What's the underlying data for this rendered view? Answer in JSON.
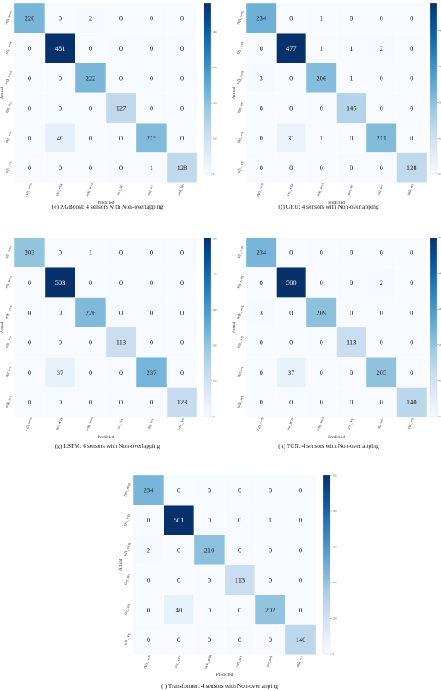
{
  "chart_data": [
    {
      "type": "heatmap",
      "caption": "(e) XGBoost: 4 sensors with Non-overlapping",
      "x_categories": [
        "run_wos",
        "stn_wos",
        "wlk_wos",
        "run_ws",
        "stn_ws",
        "wlk_ws"
      ],
      "y_categories": [
        "run_wos",
        "stn_wos",
        "wlk_wos",
        "run_ws",
        "stn_ws",
        "wlk_ws"
      ],
      "xlabel": "Predicted",
      "ylabel": "Actual",
      "values": [
        [
          226,
          0,
          2,
          0,
          0,
          0
        ],
        [
          0,
          481,
          0,
          0,
          0,
          0
        ],
        [
          0,
          0,
          222,
          0,
          0,
          0
        ],
        [
          0,
          0,
          0,
          127,
          0,
          0
        ],
        [
          0,
          40,
          0,
          0,
          215,
          0
        ],
        [
          0,
          0,
          0,
          0,
          1,
          128
        ]
      ],
      "vmin": 0,
      "vmax": 481,
      "colorbar_ticks": [
        0,
        100,
        200,
        300,
        400
      ]
    },
    {
      "type": "heatmap",
      "caption": "(f) GRU: 4 sensors with Non-overlapping",
      "x_categories": [
        "run_wos",
        "stn_wos",
        "wlk_wos",
        "run_ws",
        "stn_ws",
        "wlk_ws"
      ],
      "y_categories": [
        "run_wos",
        "stn_wos",
        "wlk_wos",
        "run_ws",
        "stn_ws",
        "wlk_ws"
      ],
      "xlabel": "Predicted",
      "ylabel": "Actual",
      "values": [
        [
          234,
          0,
          1,
          0,
          0,
          0
        ],
        [
          0,
          477,
          1,
          1,
          2,
          0
        ],
        [
          3,
          0,
          206,
          1,
          0,
          0
        ],
        [
          0,
          0,
          0,
          145,
          0,
          0
        ],
        [
          0,
          31,
          1,
          0,
          211,
          0
        ],
        [
          0,
          0,
          0,
          0,
          0,
          128
        ]
      ],
      "vmin": 0,
      "vmax": 477,
      "colorbar_ticks": [
        0,
        100,
        200,
        300,
        400
      ]
    },
    {
      "type": "heatmap",
      "caption": "(g) LSTM: 4 sensors with Non-overlapping",
      "x_categories": [
        "run_wos",
        "stn_wos",
        "wlk_wos",
        "run_ws",
        "stn_ws",
        "wlk_ws"
      ],
      "y_categories": [
        "run_wos",
        "stn_wos",
        "wlk_wos",
        "run_ws",
        "stn_ws",
        "wlk_ws"
      ],
      "xlabel": "Predicted",
      "ylabel": "Actual",
      "values": [
        [
          203,
          0,
          1,
          0,
          0,
          0
        ],
        [
          0,
          503,
          0,
          0,
          0,
          0
        ],
        [
          0,
          0,
          226,
          0,
          0,
          0
        ],
        [
          0,
          0,
          0,
          113,
          0,
          0
        ],
        [
          0,
          37,
          0,
          0,
          237,
          0
        ],
        [
          0,
          0,
          0,
          0,
          0,
          123
        ]
      ],
      "vmin": 0,
      "vmax": 503,
      "colorbar_ticks": [
        0,
        100,
        200,
        300,
        400,
        500
      ]
    },
    {
      "type": "heatmap",
      "caption": "(h) TCN: 4 sensors with Non-overlapping",
      "x_categories": [
        "run_wos",
        "stn_wos",
        "wlk_wos",
        "run_ws",
        "stn_ws",
        "wlk_ws"
      ],
      "y_categories": [
        "run_wos",
        "stn_wos",
        "wlk_wos",
        "run_ws",
        "stn_ws",
        "wlk_ws"
      ],
      "xlabel": "Predicted",
      "ylabel": "Actual",
      "values": [
        [
          234,
          0,
          0,
          0,
          0,
          0
        ],
        [
          0,
          500,
          0,
          0,
          2,
          0
        ],
        [
          3,
          0,
          209,
          0,
          0,
          0
        ],
        [
          0,
          0,
          0,
          113,
          0,
          0
        ],
        [
          0,
          37,
          0,
          0,
          205,
          0
        ],
        [
          0,
          0,
          0,
          0,
          0,
          140
        ]
      ],
      "vmin": 0,
      "vmax": 500,
      "colorbar_ticks": [
        0,
        100,
        200,
        300,
        400,
        500
      ]
    },
    {
      "type": "heatmap",
      "caption": "(i) Transformer: 4 sensors with Non-overlapping",
      "x_categories": [
        "run_wos",
        "stn_wos",
        "wlk_wos",
        "run_ws",
        "stn_ws",
        "wlk_ws"
      ],
      "y_categories": [
        "run_wos",
        "stn_wos",
        "wlk_wos",
        "run_ws",
        "stn_ws",
        "wlk_ws"
      ],
      "xlabel": "Predicted",
      "ylabel": "Actual",
      "values": [
        [
          234,
          0,
          0,
          0,
          0,
          0
        ],
        [
          0,
          501,
          0,
          0,
          1,
          0
        ],
        [
          2,
          0,
          210,
          0,
          0,
          0
        ],
        [
          0,
          0,
          0,
          113,
          0,
          0
        ],
        [
          0,
          40,
          0,
          0,
          202,
          0
        ],
        [
          0,
          0,
          0,
          0,
          0,
          140
        ]
      ],
      "vmin": 0,
      "vmax": 501,
      "colorbar_ticks": [
        0,
        100,
        200,
        300,
        400,
        500
      ]
    }
  ],
  "colors": {
    "scale_low": "#f7fbff",
    "scale_mid": "#6baed6",
    "scale_high": "#08306b",
    "text_dark": "#222222",
    "text_light": "#ffffff",
    "grid_line": "#ffffff"
  }
}
